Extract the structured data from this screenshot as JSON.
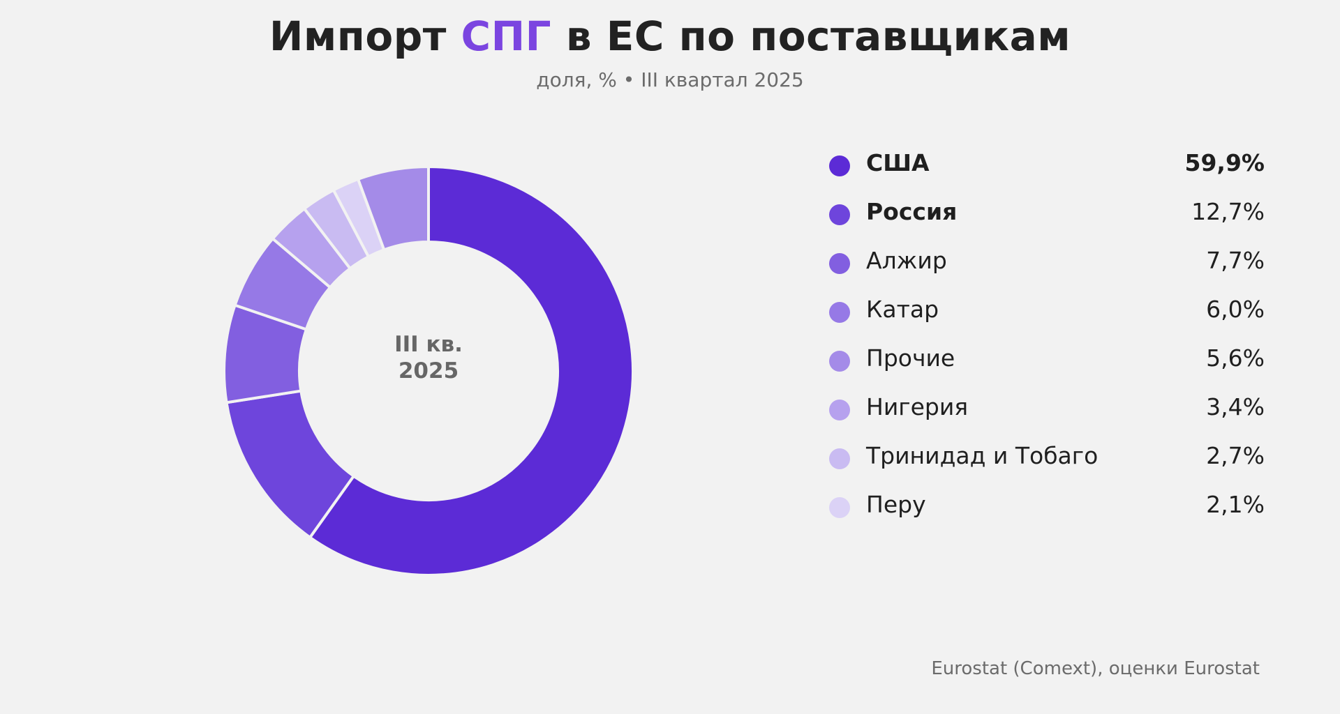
{
  "header": {
    "title_pre": "Импорт ",
    "title_accent": "СПГ",
    "title_post": " в ЕС по поставщикам",
    "subtitle": "доля, % • III квартал 2025",
    "accent_color": "#7b45e0"
  },
  "center_label": {
    "line1": "III кв.",
    "line2": "2025"
  },
  "legend": [
    {
      "name": "США",
      "value": "59,9%",
      "color": "#5c2bd6",
      "bold_name": true,
      "bold_value": true
    },
    {
      "name": "Россия",
      "value": "12,7%",
      "color": "#6e45dc",
      "bold_name": true,
      "bold_value": false
    },
    {
      "name": "Алжир",
      "value": "7,7%",
      "color": "#825fe0",
      "bold_name": false,
      "bold_value": false
    },
    {
      "name": "Катар",
      "value": "6,0%",
      "color": "#9679e6",
      "bold_name": false,
      "bold_value": false
    },
    {
      "name": "Прочие",
      "value": "5,6%",
      "color": "#a48be8",
      "bold_name": false,
      "bold_value": false
    },
    {
      "name": "Нигерия",
      "value": "3,4%",
      "color": "#b6a1ee",
      "bold_name": false,
      "bold_value": false
    },
    {
      "name": "Тринидад и Тобаго",
      "value": "2,7%",
      "color": "#c9bbf2",
      "bold_name": false,
      "bold_value": false
    },
    {
      "name": "Перу",
      "value": "2,1%",
      "color": "#dbd2f6",
      "bold_name": false,
      "bold_value": false
    }
  ],
  "footer": {
    "source": "Eurostat (Comext), оценки Eurostat"
  },
  "chart_data": {
    "type": "pie",
    "subtype": "donut",
    "title": "Импорт СПГ в ЕС по поставщикам",
    "subtitle": "доля, % • III квартал 2025",
    "center_text": "III кв. 2025",
    "categories": [
      "США",
      "Россия",
      "Алжир",
      "Катар",
      "Нигерия",
      "Тринидад и Тобаго",
      "Перу",
      "Прочие"
    ],
    "values": [
      59.9,
      12.7,
      7.7,
      6.0,
      3.4,
      2.7,
      2.1,
      5.6
    ],
    "colors": [
      "#5c2bd6",
      "#6e45dc",
      "#825fe0",
      "#9679e6",
      "#b6a1ee",
      "#c9bbf2",
      "#dbd2f6",
      "#a48be8"
    ],
    "unit": "%",
    "start_angle": "12 o'clock",
    "direction": "clockwise",
    "legend_position": "right",
    "source": "Eurostat (Comext), оценки Eurostat"
  }
}
